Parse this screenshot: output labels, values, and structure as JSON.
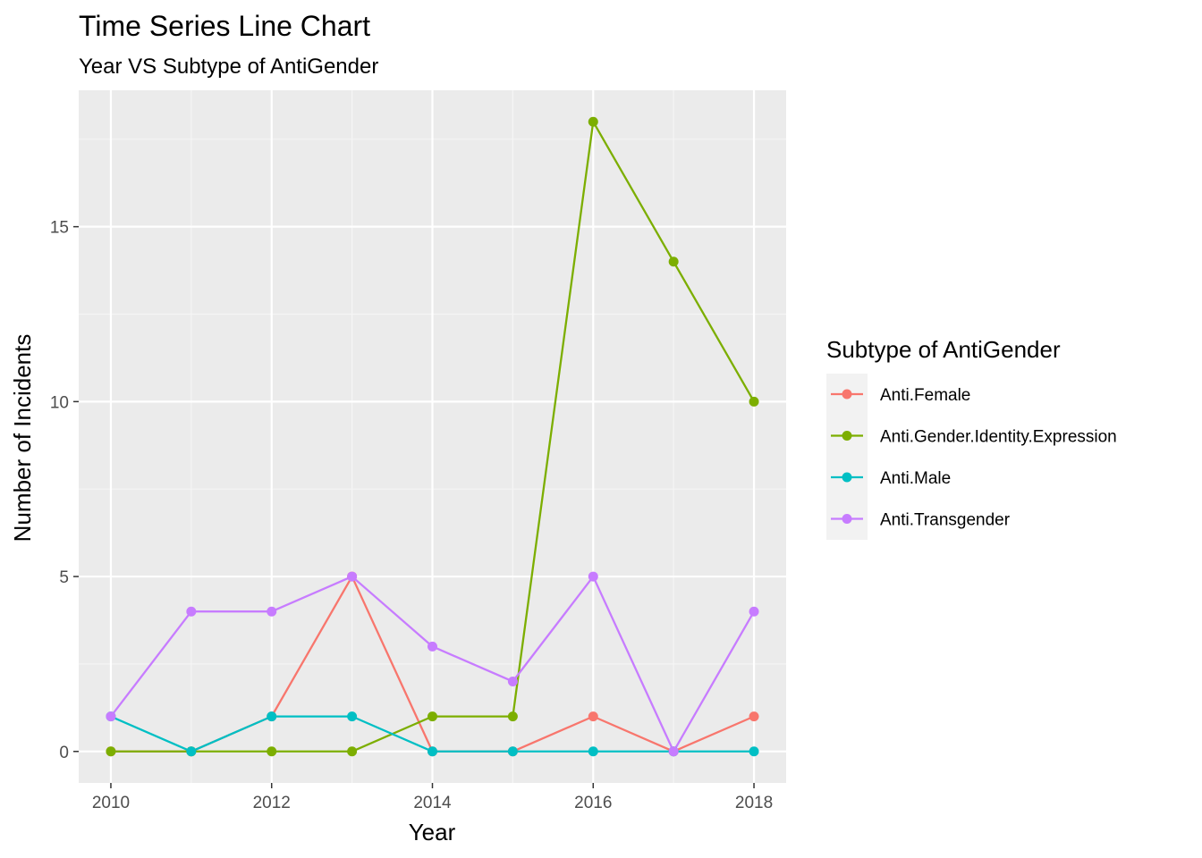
{
  "chart_data": {
    "type": "line",
    "title": "Time Series Line Chart",
    "subtitle": "Year VS Subtype of AntiGender",
    "xlabel": "Year",
    "ylabel": "Number of Incidents",
    "x": [
      2010,
      2011,
      2012,
      2013,
      2014,
      2015,
      2016,
      2017,
      2018
    ],
    "xlim": [
      2009.6,
      2018.4
    ],
    "ylim": [
      -0.9,
      18.9
    ],
    "x_ticks": [
      2010,
      2012,
      2014,
      2016,
      2018
    ],
    "y_ticks": [
      0,
      5,
      10,
      15
    ],
    "grid": true,
    "legend": {
      "title": "Subtype of AntiGender",
      "position": "right"
    },
    "series": [
      {
        "name": "Anti.Female",
        "color": "#F8766D",
        "values": [
          0,
          0,
          1,
          5,
          0,
          0,
          1,
          0,
          1
        ]
      },
      {
        "name": "Anti.Gender.Identity.Expression",
        "color": "#7CAE00",
        "values": [
          0,
          0,
          0,
          0,
          1,
          1,
          18,
          14,
          10
        ]
      },
      {
        "name": "Anti.Male",
        "color": "#00BFC4",
        "values": [
          1,
          0,
          1,
          1,
          0,
          0,
          0,
          0,
          0
        ]
      },
      {
        "name": "Anti.Transgender",
        "color": "#C77CFF",
        "values": [
          1,
          4,
          4,
          5,
          3,
          2,
          5,
          0,
          4
        ]
      }
    ]
  }
}
